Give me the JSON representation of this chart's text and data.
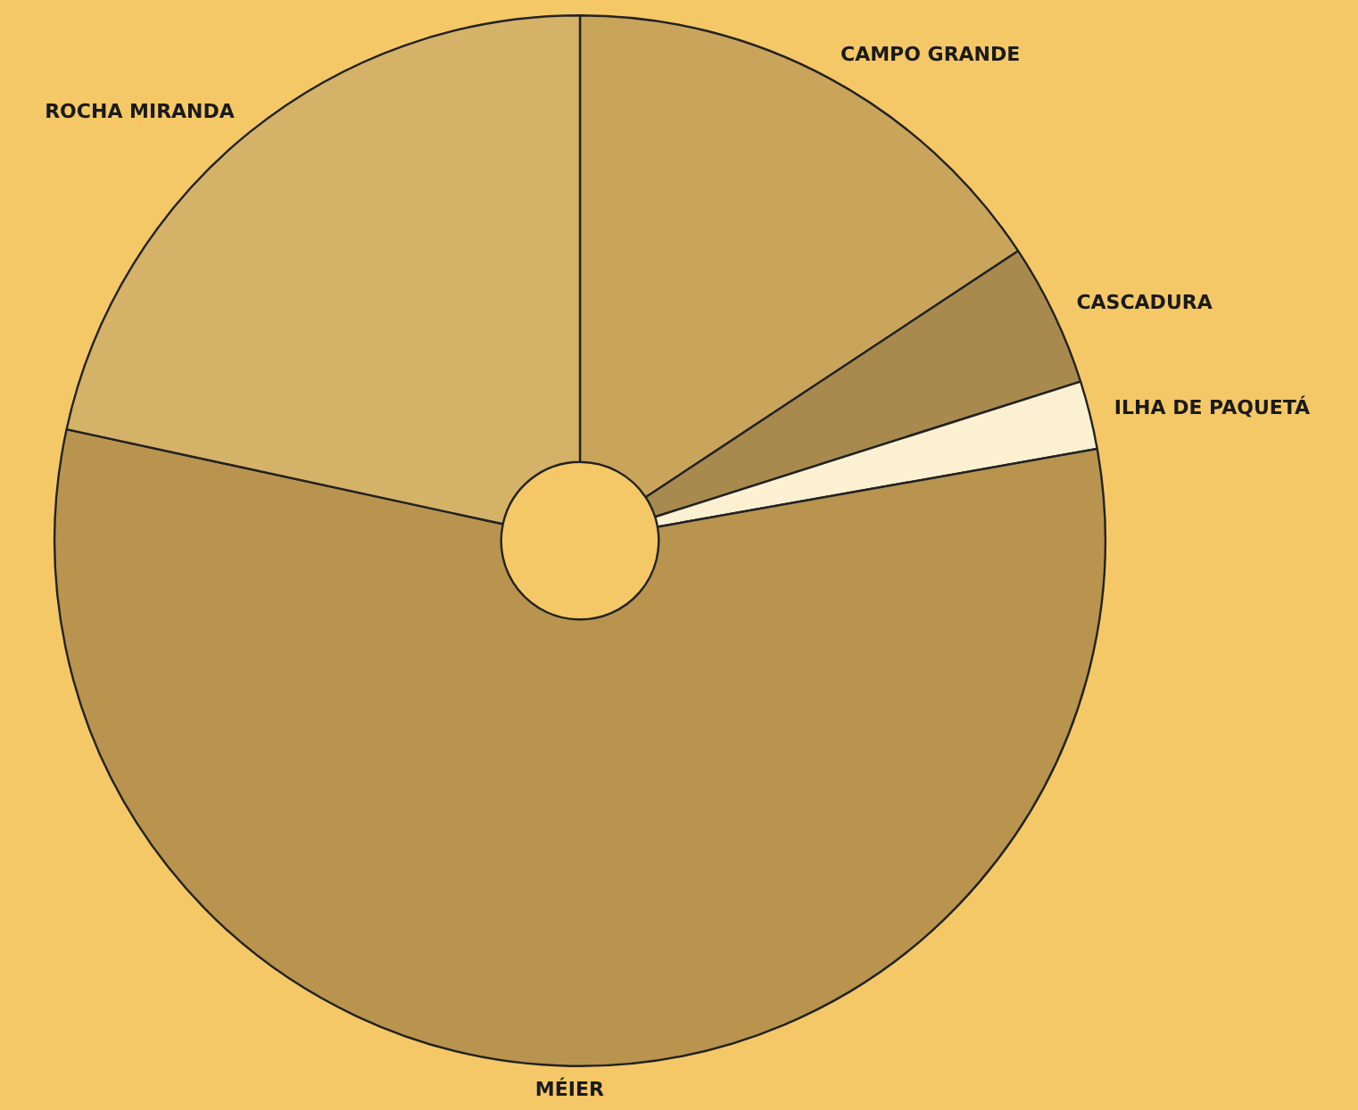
{
  "chart_data": {
    "type": "donut",
    "categories": [
      "CAMPO GRANDE",
      "CASCADURA",
      "ILHA DE PAQUETÁ",
      "MÉIER",
      "ROCHA MIRANDA"
    ],
    "values": [
      15.7,
      4.4,
      2.1,
      56.2,
      21.6
    ],
    "colors": [
      "#c9a55c",
      "#a88a4e",
      "#fbf0d2",
      "#b8944f",
      "#d4b268"
    ],
    "legend": false
  }
}
